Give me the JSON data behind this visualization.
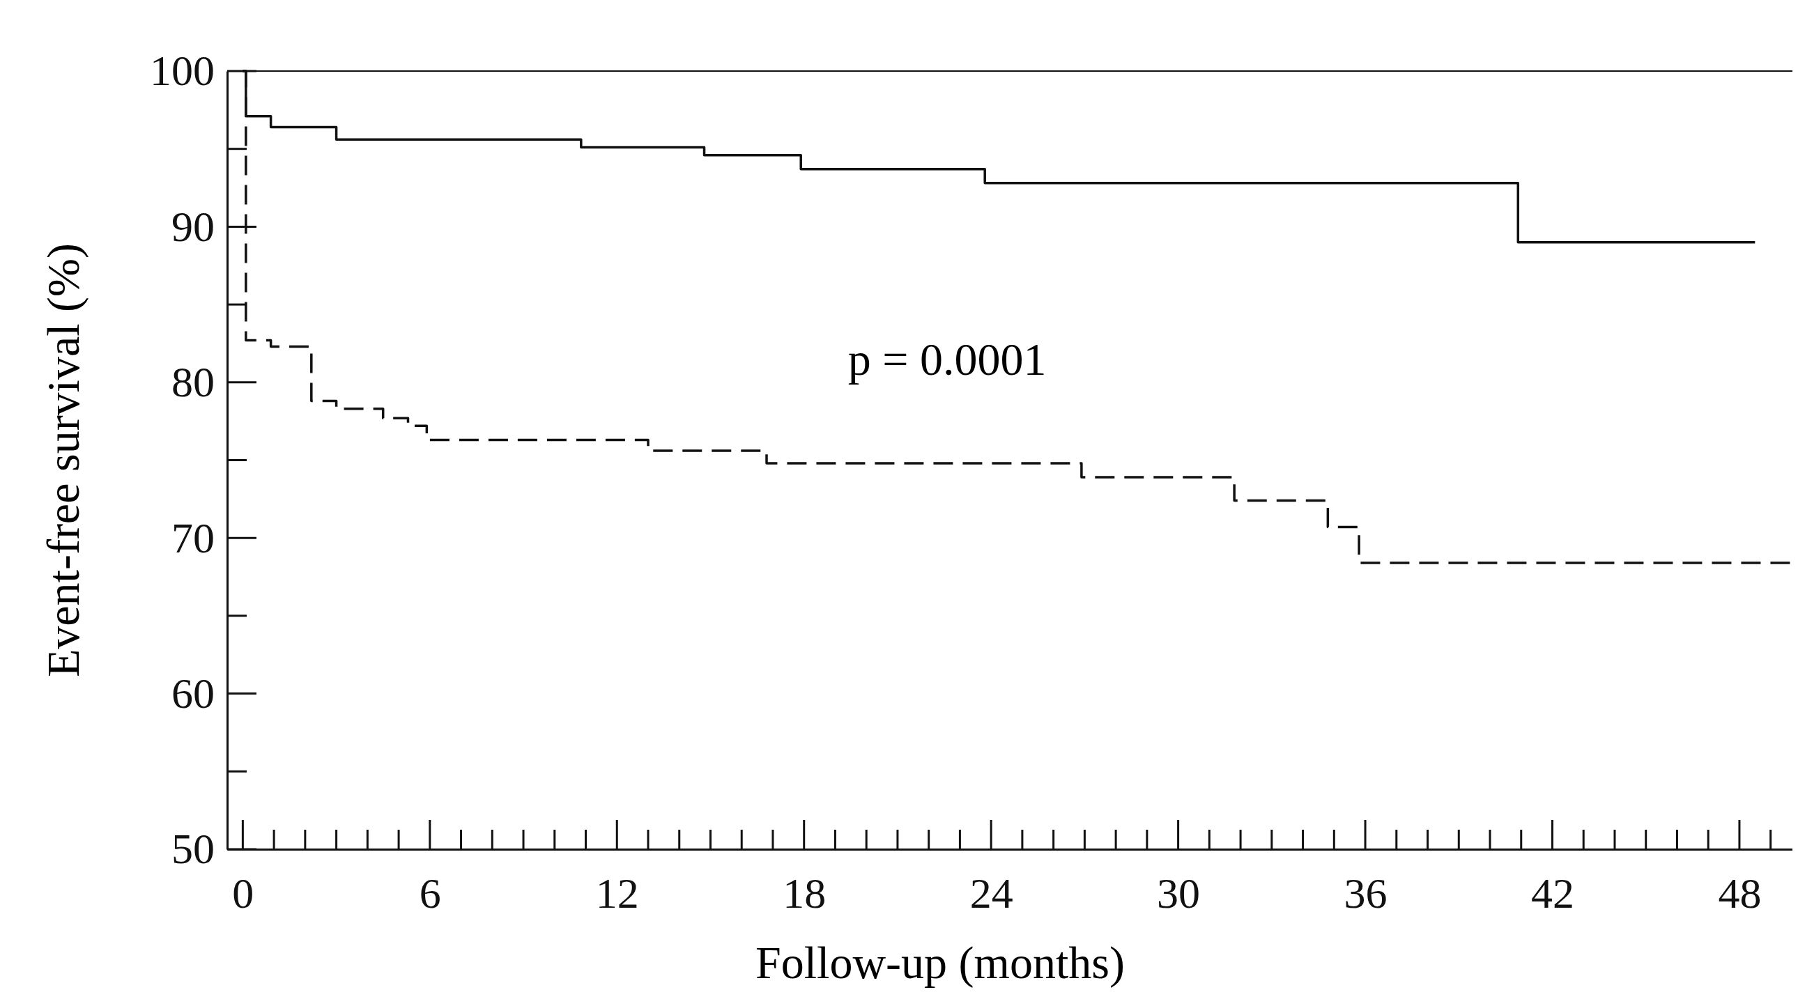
{
  "chart_data": {
    "type": "step",
    "xlabel": "Follow-up (months)",
    "ylabel": "Event-free survival (%)",
    "xlim": [
      -0.5,
      49.7
    ],
    "ylim": [
      50,
      100
    ],
    "xticks": [
      0,
      6,
      12,
      18,
      24,
      30,
      36,
      42,
      48
    ],
    "yticks": [
      50,
      60,
      70,
      80,
      90,
      100
    ],
    "grid": false,
    "marker": "none",
    "series": [
      {
        "color": "#111111",
        "line_style": "solid",
        "x": [
          0,
          0.1,
          0.9,
          3.0,
          10.85,
          14.8,
          17.9,
          23.8,
          40.9,
          48.5
        ],
        "values": [
          100,
          97.1,
          96.4,
          95.6,
          95.1,
          94.6,
          93.7,
          92.8,
          89.0,
          89.0
        ]
      },
      {
        "color": "#111111",
        "line_style": "dashed",
        "x": [
          0,
          0.1,
          0.9,
          2.2,
          3.0,
          4.5,
          5.3,
          5.9,
          13.0,
          16.8,
          26.9,
          31.8,
          34.8,
          35.8,
          49.7
        ],
        "values": [
          100,
          82.7,
          82.3,
          78.8,
          78.3,
          77.7,
          77.2,
          76.3,
          75.6,
          74.8,
          73.9,
          72.4,
          70.7,
          68.4,
          68.4
        ]
      }
    ],
    "annotations": [
      "p = 0.0001"
    ]
  }
}
